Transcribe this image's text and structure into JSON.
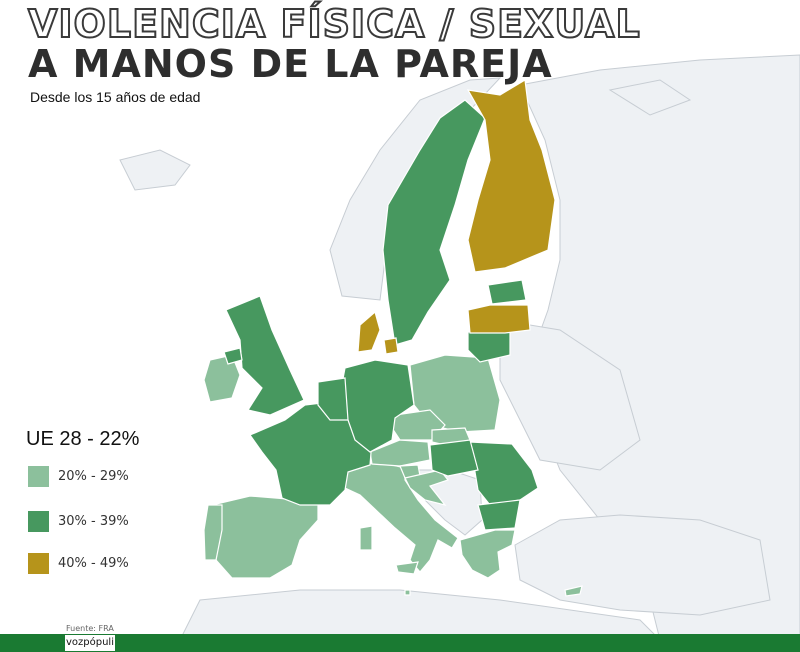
{
  "title_line1": "VIOLENCIA FÍSICA / SEXUAL",
  "title_line2": "A MANOS DE LA PAREJA",
  "subtitle": "Desde los 15 años de edad",
  "legend": {
    "title": "UE 28 - 22%",
    "items": [
      {
        "label": "20% - 29%",
        "color": "#8cc09c"
      },
      {
        "label": "30% - 39%",
        "color": "#47985f"
      },
      {
        "label": "40% - 49%",
        "color": "#b6941b"
      }
    ]
  },
  "colors": {
    "non_eu_land": "#eef1f4",
    "border": "#c7cdd3",
    "footer": "#1a7a32"
  },
  "source": "Fuente: FRA",
  "brand": "vozpópuli"
}
